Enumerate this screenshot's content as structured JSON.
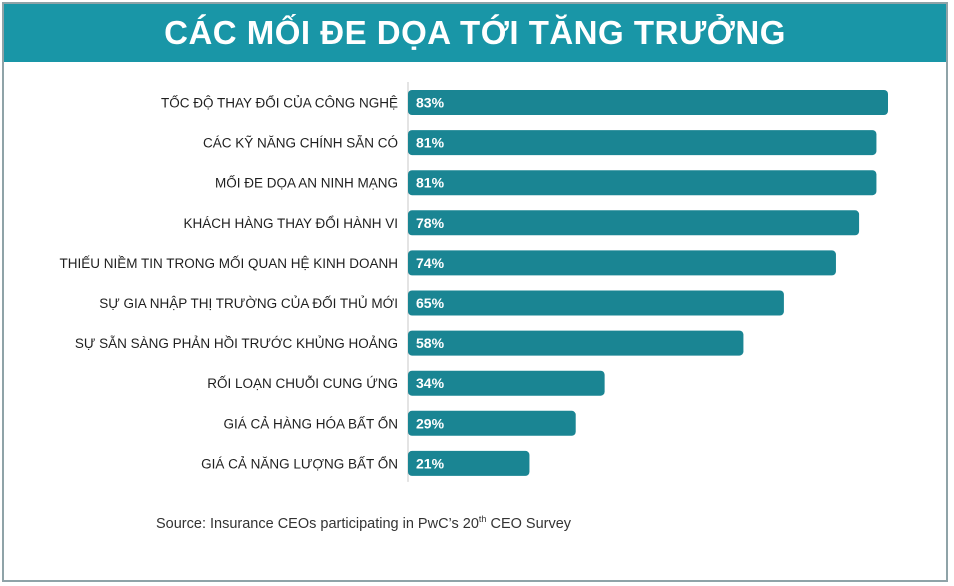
{
  "colors": {
    "banner": "#1996a7",
    "bar": "#1a8593",
    "label": "#1f1f1f",
    "value_text": "#ffffff"
  },
  "source": {
    "prefix": "Source: Insurance CEOs participating in PwC’s 20",
    "superscript": "th",
    "suffix": " CEO Survey"
  },
  "chart_data": {
    "type": "bar",
    "orientation": "horizontal",
    "title": "CÁC MỐI ĐE DỌA TỚI TĂNG TRƯỞNG",
    "categories": [
      "TỐC ĐỘ THAY ĐỔI CỦA CÔNG NGHỆ",
      "CÁC KỸ NĂNG CHÍNH SẴN CÓ",
      "MỐI ĐE DỌA AN NINH MẠNG",
      "KHÁCH HÀNG THAY ĐỔI HÀNH VI",
      "THIẾU NIỀM TIN TRONG MỐI QUAN HỆ KINH DOANH",
      "SỰ GIA NHẬP THỊ TRƯỜNG CỦA ĐỐI THỦ MỚI",
      "SỰ SẴN SÀNG PHẢN HỒI TRƯỚC KHỦNG HOẢNG",
      "RỐI LOẠN CHUỖI CUNG ỨNG",
      "GIÁ CẢ HÀNG HÓA BẤT ỔN",
      "GIÁ CẢ NĂNG LƯỢNG BẤT ỔN"
    ],
    "values": [
      83,
      81,
      81,
      78,
      74,
      65,
      58,
      34,
      29,
      21
    ],
    "value_labels": [
      "83%",
      "81%",
      "81%",
      "78%",
      "74%",
      "65%",
      "58%",
      "34%",
      "29%",
      "21%"
    ],
    "xlim": [
      0,
      100
    ],
    "grid": false,
    "legend": "none"
  }
}
